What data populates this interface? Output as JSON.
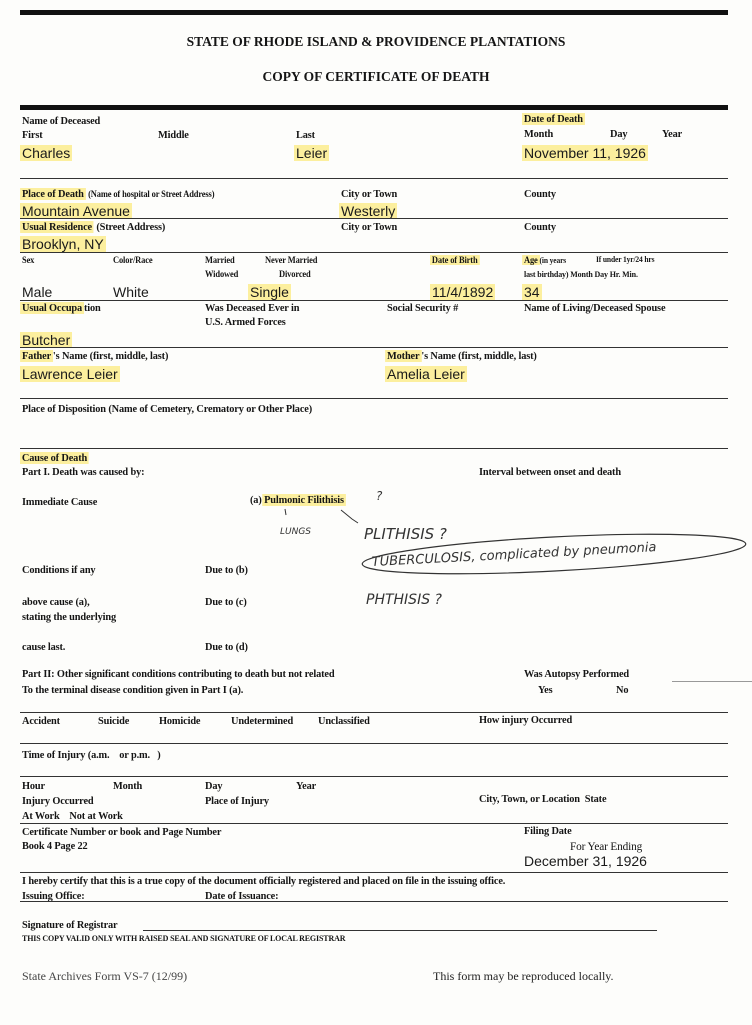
{
  "header": {
    "title": "STATE OF RHODE ISLAND & PROVIDENCE PLANTATIONS",
    "subtitle": "COPY OF CERTIFICATE OF DEATH"
  },
  "name": {
    "label": "Name of Deceased",
    "first_label": "First",
    "middle_label": "Middle",
    "last_label": "Last",
    "first": "Charles",
    "last": "Leier"
  },
  "death_date": {
    "label": "Date of Death",
    "month_label": "Month",
    "day_label": "Day",
    "year_label": "Year",
    "value": "November 11, 1926"
  },
  "place_of_death": {
    "label": "Place of Death",
    "sub": "(Name of hospital or Street Address)",
    "city_label": "City or Town",
    "county_label": "County",
    "value": "Mountain Avenue",
    "city": "Westerly"
  },
  "residence": {
    "label": "Usual Residence",
    "sub": "(Street Address)",
    "city_label": "City or Town",
    "county_label": "County",
    "value": "Brooklyn, NY"
  },
  "personal": {
    "sex_label": "Sex",
    "race_label": "Color/Race",
    "married": "Married",
    "never_married": "Never Married",
    "widowed": "Widowed",
    "divorced": "Divorced",
    "dob_label": "Date of Birth",
    "age_label": "Age",
    "age_sub": "(in years",
    "age_under": "If under 1yr/24 hrs",
    "age_sub2": "last birthday)  Month   Day  Hr. Min.",
    "sex": "Male",
    "race": "White",
    "marital": "Single",
    "dob": "11/4/1892",
    "age": "34"
  },
  "occupation": {
    "label": "Usual Occupa",
    "label_rest": "tion",
    "armed1": "Was Deceased Ever in",
    "armed2": "U.S. Armed Forces",
    "ssn_label": "Social Security #",
    "spouse_label": "Name of Living/Deceased Spouse",
    "value": "Butcher"
  },
  "parents": {
    "father_label_hl": "Father",
    "father_label": "'s Name (first, middle, last)",
    "father": "Lawrence Leier",
    "mother_label_hl": "Mother",
    "mother_label": "'s Name (first, middle, last)",
    "mother": "Amelia Leier"
  },
  "disposition": {
    "label": "Place of Disposition (Name of Cemetery, Crematory or Other Place)"
  },
  "cause": {
    "label": "Cause of Death",
    "part1": "Part I.  Death was caused by:",
    "interval": "Interval between onset and death",
    "immediate": "Immediate Cause",
    "a_prefix": "(a)",
    "a_value": "Pulmonic Filithisis",
    "conditions": "Conditions if any",
    "due_b": "Due to (b)",
    "above": "above cause (a),",
    "due_c": "Due to (c)",
    "stating": "stating the underlying",
    "cause_last": "cause last.",
    "due_d": "Due to (d)",
    "part2_1": "Part II:  Other significant conditions contributing to death but not related",
    "part2_2": "To the terminal disease condition given in Part I (a).",
    "autopsy": "Was Autopsy Performed",
    "yes": "Yes",
    "no": "No"
  },
  "handwriting": {
    "q1": "?",
    "lungs": "LUNGS",
    "plithisis": "PLITHISIS ?",
    "tb": "TUBERCULOSIS, complicated by pneumonia",
    "phthisis": "PHTHISIS ?"
  },
  "manner": {
    "accident": "Accident",
    "suicide": "Suicide",
    "homicide": "Homicide",
    "undetermined": "Undetermined",
    "unclassified": "Unclassified",
    "how": "How injury Occurred"
  },
  "injury": {
    "time": "Time of Injury (a.m.    or p.m.   )",
    "hour": "Hour",
    "month": "Month",
    "day": "Day",
    "year": "Year",
    "occurred": "Injury Occurred",
    "place": "Place of Injury",
    "location": "City, Town, or Location  State",
    "work": "At Work    Not at Work"
  },
  "certificate": {
    "label": "Certificate Number or book and Page Number",
    "value": "Book 4 Page 22",
    "filing_label": "Filing Date",
    "year_ending": "For Year Ending",
    "filing_date": "December 31, 1926"
  },
  "certify": {
    "text": "I hereby certify that this is a true copy of the document officially registered and placed on file in the issuing office.",
    "office": "Issuing Office:",
    "date": "Date of Issuance:"
  },
  "signature": {
    "label": "Signature of Registrar",
    "note": "THIS COPY VALID ONLY WITH RAISED SEAL AND SIGNATURE OF LOCAL REGISTRAR"
  },
  "footer": {
    "form": "State Archives Form VS-7 (12/99)",
    "reproduce": "This form may be reproduced locally."
  },
  "colors": {
    "highlight": "#fcef9e",
    "ink": "#151515"
  }
}
